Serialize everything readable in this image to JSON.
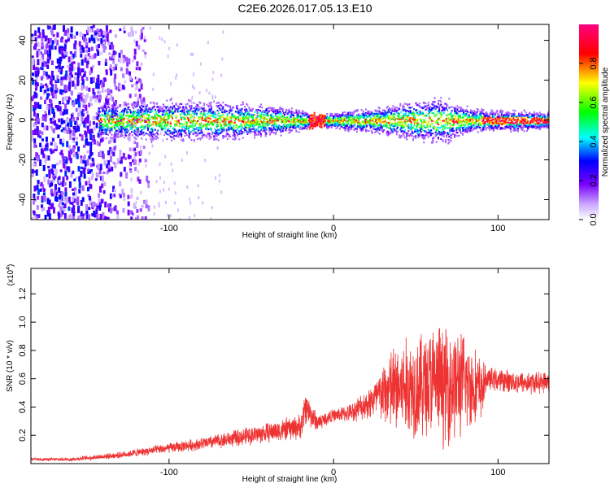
{
  "title": "C2E6.2026.017.05.13.E10",
  "chart_data": [
    {
      "type": "heatmap",
      "name": "spectrogram",
      "xlabel": "Height of straight line (km)",
      "ylabel": "Frequency (Hz)",
      "xlim": [
        -184,
        131
      ],
      "ylim": [
        -50,
        48
      ],
      "xticks": [
        -100,
        0,
        100
      ],
      "xtick_labels": [
        "-100",
        "0",
        "100"
      ],
      "yticks": [
        -40,
        -20,
        0,
        20,
        40
      ],
      "ytick_labels": [
        "-40",
        "-20",
        "0",
        "20",
        "40"
      ],
      "band_center_hz": 0,
      "band_halfwidth_profile": [
        {
          "x": -140,
          "hz": 8
        },
        {
          "x": -100,
          "hz": 9
        },
        {
          "x": -60,
          "hz": 8
        },
        {
          "x": -30,
          "hz": 6
        },
        {
          "x": -10,
          "hz": 3
        },
        {
          "x": 20,
          "hz": 5
        },
        {
          "x": 50,
          "hz": 9
        },
        {
          "x": 70,
          "hz": 10
        },
        {
          "x": 85,
          "hz": 5
        },
        {
          "x": 130,
          "hz": 4
        }
      ],
      "noise_region_x": [
        -184,
        -125
      ],
      "colorbar": {
        "label": "Normalized spectral amplitude",
        "range": [
          0,
          1
        ],
        "ticks": [
          0.0,
          0.2,
          0.4,
          0.6,
          0.8
        ],
        "tick_labels": [
          "0.0",
          "0.2",
          "0.4",
          "0.6",
          "0.8"
        ]
      }
    },
    {
      "type": "line",
      "name": "snr",
      "xlabel": "Height of straight line (km)",
      "ylabel": "SNR (10 * v/v)",
      "multiplier_label": "(x10",
      "multiplier_exp": "4",
      "multiplier_close": ")",
      "xlim": [
        -184,
        131
      ],
      "ylim": [
        0,
        13800
      ],
      "xticks": [
        -100,
        0,
        100
      ],
      "xtick_labels": [
        "-100",
        "0",
        "100"
      ],
      "yticks": [
        2000,
        4000,
        6000,
        8000,
        10000,
        12000
      ],
      "ytick_labels": [
        "0.2",
        "0.4",
        "0.6",
        "0.8",
        "1.0",
        "1.2"
      ],
      "color": "#ee3333",
      "envelope": {
        "x": [
          -184,
          -160,
          -130,
          -100,
          -80,
          -60,
          -40,
          -20,
          -17,
          -10,
          0,
          10,
          20,
          28,
          35,
          50,
          60,
          70,
          80,
          90,
          93,
          100,
          110,
          120,
          131
        ],
        "mean": [
          300,
          300,
          600,
          1100,
          1400,
          1800,
          2200,
          2600,
          4000,
          2900,
          3400,
          3600,
          4200,
          4800,
          5200,
          5500,
          5800,
          5600,
          5700,
          5200,
          6000,
          5900,
          5800,
          5700,
          5800
        ],
        "amp": [
          100,
          150,
          250,
          400,
          500,
          650,
          800,
          1000,
          1400,
          700,
          500,
          700,
          1200,
          2000,
          3500,
          4200,
          4500,
          4800,
          4000,
          2500,
          900,
          900,
          900,
          900,
          800
        ]
      }
    }
  ]
}
